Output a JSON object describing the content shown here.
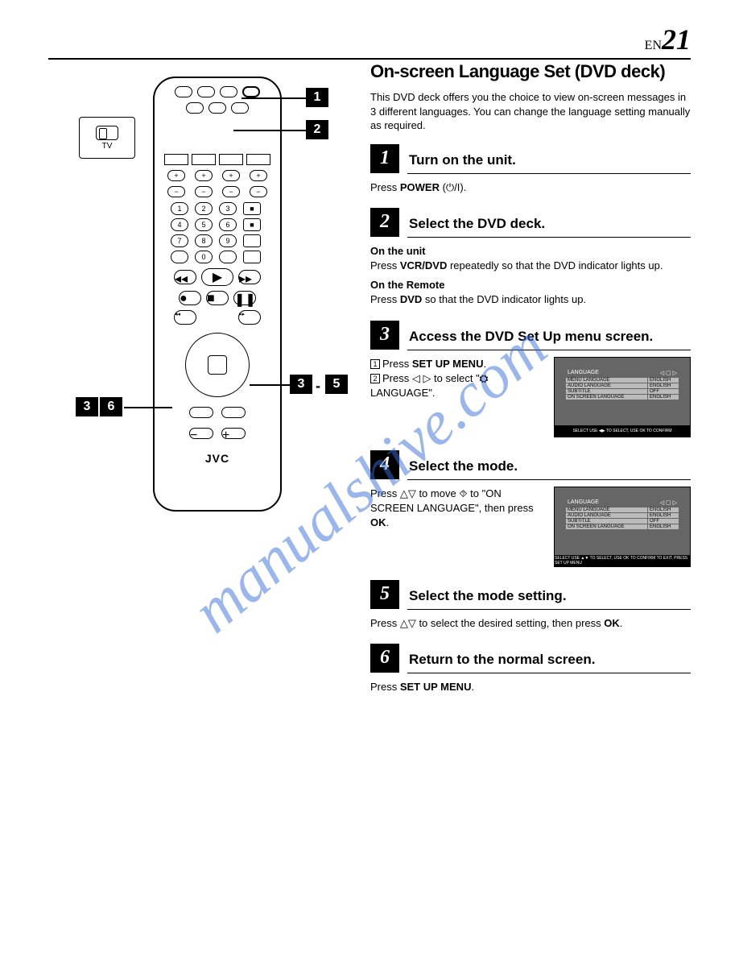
{
  "header": {
    "prefix": "EN",
    "page": "21"
  },
  "watermark": "manualshive.com",
  "remote": {
    "brand": "JVC",
    "tv_label": "TV",
    "numbers": [
      "1",
      "2",
      "3",
      "4",
      "5",
      "6",
      "7",
      "8",
      "9",
      "0"
    ],
    "callouts": {
      "c1": "1",
      "c2": "2",
      "c3": "3",
      "c5": "5",
      "c3b": "3",
      "c6": "6"
    }
  },
  "title": "On-screen Language Set (DVD deck)",
  "intro": "This DVD deck offers you the choice to view on-screen messages in 3 different languages. You can change the language setting manually as required.",
  "steps": [
    {
      "num": "1",
      "title": "Turn on the unit.",
      "body_html": "Press <b>POWER</b> (⏻/I)."
    },
    {
      "num": "2",
      "title": "Select the DVD deck.",
      "subs": [
        {
          "h": "On the unit",
          "t_html": "Press <b>VCR/DVD</b> repeatedly so that the DVD indicator lights up."
        },
        {
          "h": "On the Remote",
          "t_html": "Press <b>DVD</b> so that the DVD indicator lights up."
        }
      ]
    },
    {
      "num": "3",
      "title": "Access the DVD Set Up menu screen.",
      "list": [
        {
          "n": "1",
          "t_html": "Press <b>SET UP MENU</b>."
        },
        {
          "n": "2",
          "t_html": "Press ◁ ▷ to select \"<b>⛭</b> LANGUAGE\"."
        }
      ],
      "screen": {
        "hdr": "LANGUAGE",
        "rows": [
          {
            "l": "MENU LANGUAGE",
            "v": "ENGLISH"
          },
          {
            "l": "AUDIO LANGUAGE",
            "v": "ENGLISH"
          },
          {
            "l": "SUBTITLE",
            "v": "OFF"
          },
          {
            "l": "ON SCREEN LANGUAGE",
            "v": "ENGLISH"
          }
        ],
        "bar": "SELECT  USE ◀▶ TO SELECT, USE OK TO CONFIRM"
      }
    },
    {
      "num": "4",
      "title": "Select the mode.",
      "text_html": "Press △▽ to move ⯑ to \"ON SCREEN LANGUAGE\", then press <b>OK</b>.",
      "screen": {
        "hdr": "LANGUAGE",
        "rows": [
          {
            "l": "MENU LANGUAGE",
            "v": "ENGLISH"
          },
          {
            "l": "AUDIO LANGUAGE",
            "v": "ENGLISH"
          },
          {
            "l": "SUBTITLE",
            "v": "OFF"
          },
          {
            "l": "ON SCREEN LANGUAGE",
            "v": "ENGLISH"
          }
        ],
        "bar": "SELECT  USE ▲▼ TO SELECT, USE OK TO CONFIRM  TO EXIT, PRESS SET UP MENU"
      }
    },
    {
      "num": "5",
      "title": "Select the mode setting.",
      "body_html": "Press △▽ to select the desired setting, then press <b>OK</b>."
    },
    {
      "num": "6",
      "title": "Return to the normal screen.",
      "body_html": "Press <b>SET UP MENU</b>."
    }
  ]
}
